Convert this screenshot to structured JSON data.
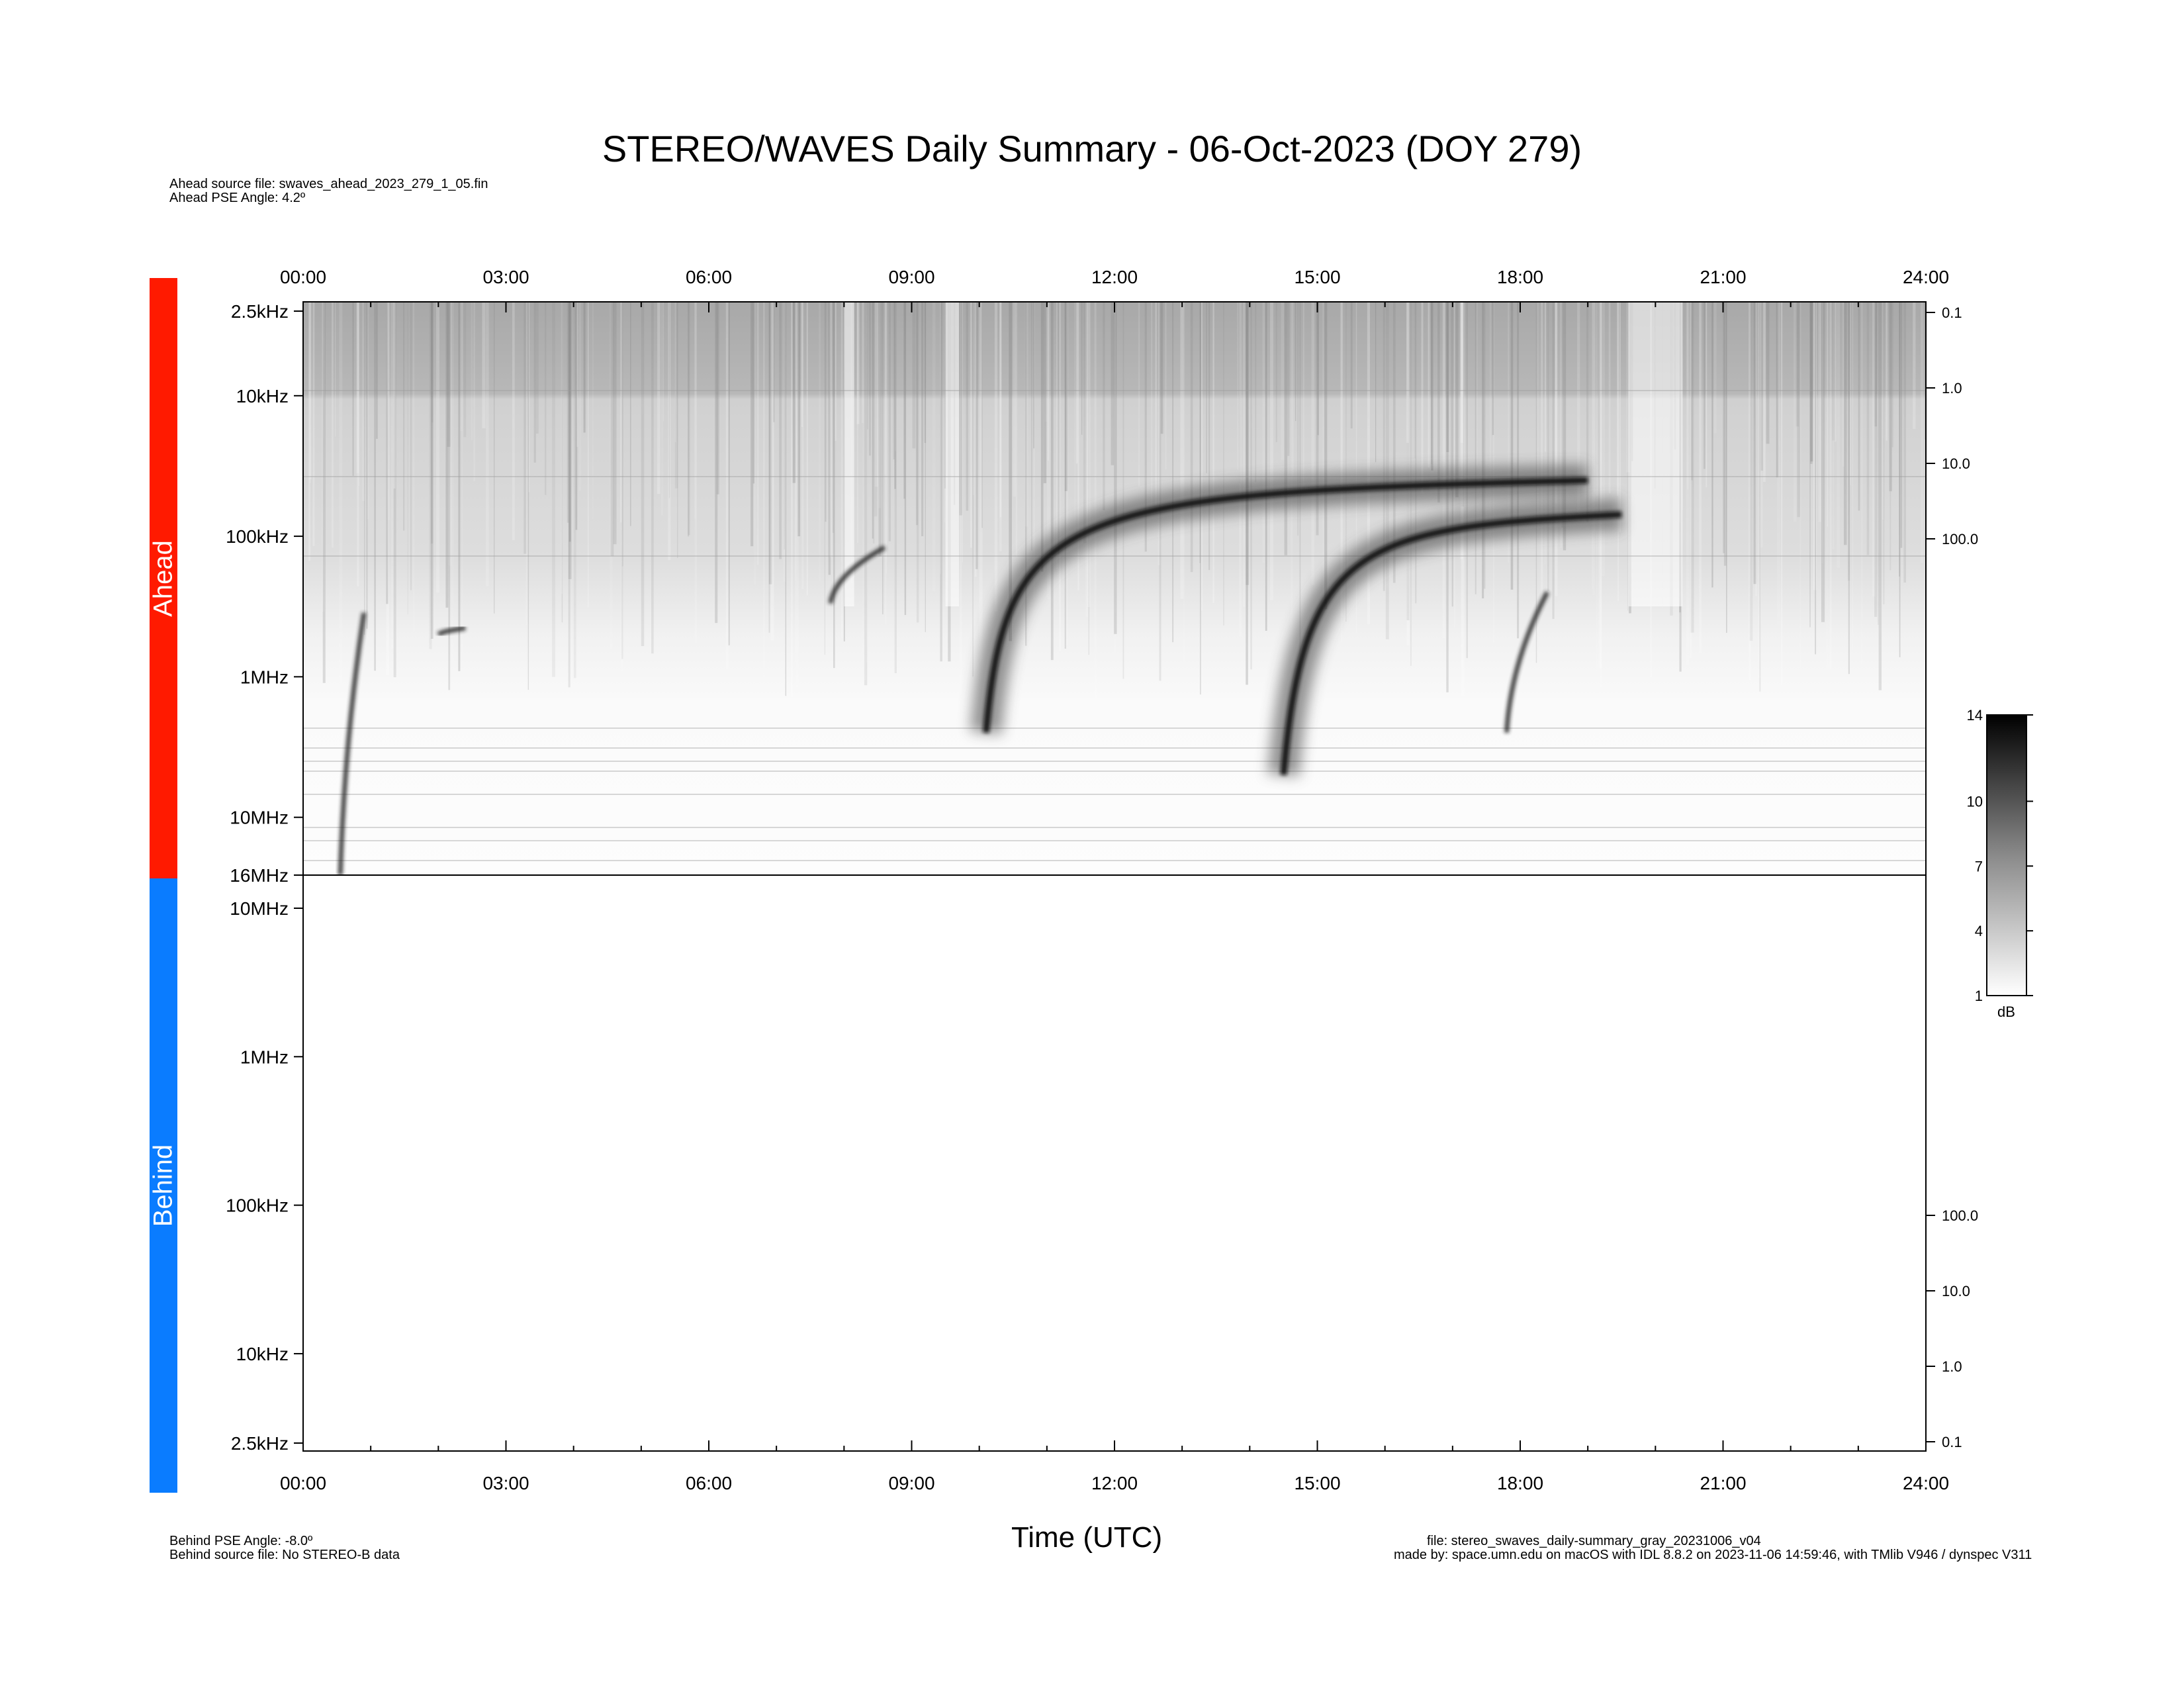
{
  "page": {
    "title": "STEREO/WAVES Daily Summary - 06-Oct-2023 (DOY 279)",
    "ahead_source": "Ahead source file: swaves_ahead_2023_279_1_05.fin",
    "ahead_pse": "Ahead PSE Angle:    4.2º",
    "behind_pse": "Behind PSE Angle:   -8.0º",
    "behind_source": "Behind source file: No STEREO-B data",
    "file_info": "file: stereo_swaves_daily-summary_gray_20231006_v04",
    "made_by": "made by: space.umn.edu on macOS with IDL 8.8.2 on 2023-11-06 14:59:46, with TMlib V946 / dynspec V311",
    "ahead_label": "Ahead",
    "behind_label": "Behind",
    "xlabel": "Time (UTC)",
    "colorbar_unit": "dB"
  },
  "colors": {
    "ahead": "#ff1a00",
    "behind": "#0a7cff",
    "axis": "#000000"
  },
  "chart_data": {
    "type": "heatmap",
    "title": "STEREO/WAVES Daily Summary - 06-Oct-2023 (DOY 279)",
    "xlabel": "Time (UTC)",
    "x_unit": "hours UTC",
    "xlim": [
      0,
      24
    ],
    "x_ticks": [
      "00:00",
      "03:00",
      "06:00",
      "09:00",
      "12:00",
      "15:00",
      "18:00",
      "21:00",
      "24:00"
    ],
    "x_ticks_bottom": [
      "00:00",
      "03:00",
      "06:00",
      "09:00",
      "12:00",
      "15:00",
      "18:00",
      "21:00",
      "24:00"
    ],
    "ahead_panel": {
      "y_scale": "log",
      "freq_range_khz": [
        2.5,
        16000
      ],
      "y_ticks": [
        {
          "label": "2.5kHz",
          "khz": 2.5
        },
        {
          "label": "10kHz",
          "khz": 10
        },
        {
          "label": "100kHz",
          "khz": 100
        },
        {
          "label": "1MHz",
          "khz": 1000
        },
        {
          "label": "10MHz",
          "khz": 10000
        },
        {
          "label": "16MHz",
          "khz": 16000
        }
      ],
      "right_axis_ticks": [
        "0.1",
        "1.0",
        "10.0",
        "100.0"
      ],
      "radio_bursts": [
        {
          "start_h": 0.55,
          "end_h": 0.9,
          "f_start_mhz": 16,
          "f_end_mhz": 0.35
        },
        {
          "start_h": 2.0,
          "end_h": 2.4,
          "f_start_mhz": 0.5,
          "f_end_mhz": 0.45
        },
        {
          "start_h": 7.8,
          "end_h": 8.6,
          "f_start_mhz": 0.3,
          "f_end_mhz": 0.12
        },
        {
          "start_h": 10.1,
          "end_h": 19.0,
          "f_start_mhz": 2.5,
          "f_end_mhz": 0.04
        },
        {
          "start_h": 14.5,
          "end_h": 19.5,
          "f_start_mhz": 5.0,
          "f_end_mhz": 0.07
        },
        {
          "start_h": 17.8,
          "end_h": 18.4,
          "f_start_mhz": 2.5,
          "f_end_mhz": 0.25
        }
      ]
    },
    "behind_panel": {
      "y_scale": "log",
      "data": "No STEREO-B data",
      "y_ticks": [
        {
          "label": "10MHz",
          "khz": 10000
        },
        {
          "label": "1MHz",
          "khz": 1000
        },
        {
          "label": "100kHz",
          "khz": 100
        },
        {
          "label": "10kHz",
          "khz": 10
        },
        {
          "label": "2.5kHz",
          "khz": 2.5
        }
      ],
      "right_axis_ticks": [
        "100.0",
        "10.0",
        "1.0",
        "0.1"
      ]
    },
    "colorbar": {
      "unit": "dB",
      "range": [
        1,
        14
      ],
      "ticks": [
        "14",
        "10",
        "7",
        "4",
        "1"
      ],
      "colormap": "gray (white = low, black = high)"
    }
  }
}
